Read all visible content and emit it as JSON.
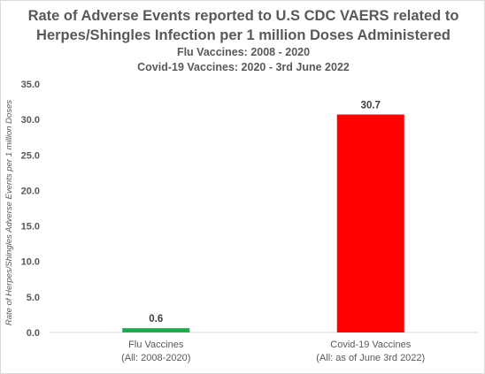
{
  "chart_data": {
    "type": "bar",
    "title_lines": [
      "Rate of Adverse Events reported to U.S CDC VAERS related to",
      "Herpes/Shingles Infection per 1 million Doses Administered"
    ],
    "subtitle_lines": [
      "Flu Vaccines: 2008 - 2020",
      "Covid-19 Vaccines: 2020 - 3rd June 2022"
    ],
    "ylabel": "Rate of Herpes/Shingles Adverse Events per 1 million Doses",
    "xlabel": "",
    "categories": [
      [
        "Flu Vaccines",
        "(All: 2008-2020)"
      ],
      [
        "Covid-19 Vaccines",
        "(All: as of June 3rd 2022)"
      ]
    ],
    "values": [
      0.6,
      30.7
    ],
    "data_labels": [
      "0.6",
      "30.7"
    ],
    "colors": [
      "#1aab4b",
      "#ff0000"
    ],
    "ylim": [
      0,
      35
    ],
    "yticks": [
      "0.0",
      "5.0",
      "10.0",
      "15.0",
      "20.0",
      "25.0",
      "30.0",
      "35.0"
    ],
    "grid": false,
    "legend": "none"
  }
}
